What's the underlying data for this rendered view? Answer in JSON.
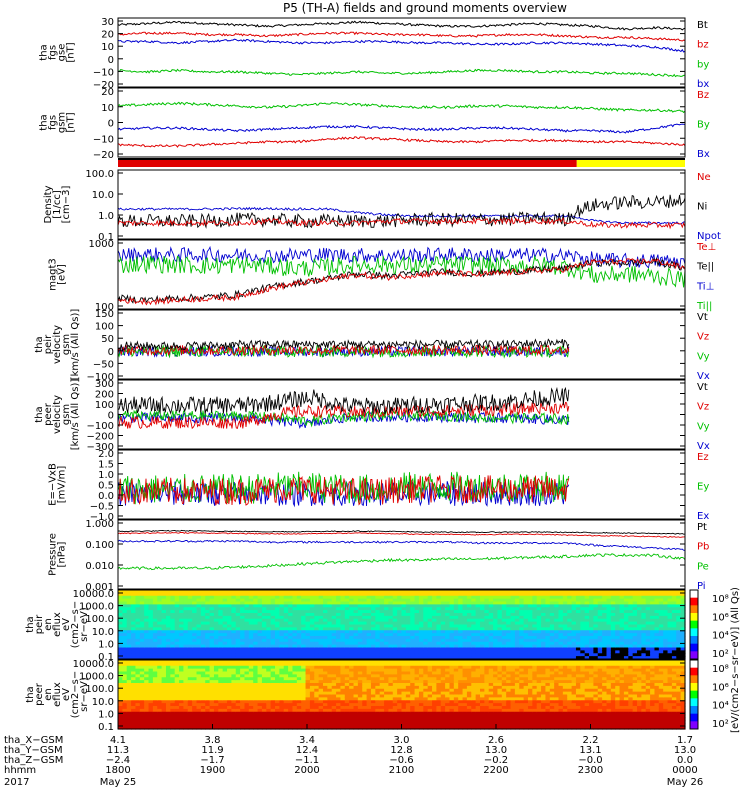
{
  "title": "P5 (TH-A) fields and ground moments overview",
  "chart_data": [
    {
      "type": "line",
      "ylabel": [
        "tha",
        "fgs",
        "gse",
        "[nT]"
      ],
      "yticks": [
        "30",
        "20",
        "10",
        "0",
        "−10",
        "−20"
      ],
      "ylim": [
        -20,
        30
      ],
      "legend": [
        {
          "name": "Bt",
          "color": "#000000"
        },
        {
          "name": "bz",
          "color": "#e00000"
        },
        {
          "name": "by",
          "color": "#00c000"
        },
        {
          "name": "bx",
          "color": "#0000d0"
        }
      ],
      "series": [
        {
          "name": "Bt",
          "color": "#000000",
          "level": [
            25,
            26,
            27,
            26,
            25,
            24,
            25,
            26,
            27,
            26,
            25,
            24,
            24,
            25,
            26,
            25,
            24,
            22,
            23,
            22
          ],
          "noise": 0.8
        },
        {
          "name": "bz",
          "color": "#e00000",
          "level": [
            18,
            19,
            19,
            18,
            18,
            17,
            18,
            19,
            19,
            18,
            18,
            17,
            17,
            18,
            18,
            17,
            16,
            16,
            15,
            14
          ],
          "noise": 0.8
        },
        {
          "name": "bx",
          "color": "#0000d0",
          "level": [
            13,
            13,
            12,
            13,
            14,
            13,
            12,
            12,
            13,
            13,
            12,
            12,
            11,
            11,
            12,
            12,
            11,
            10,
            9,
            6
          ],
          "noise": 0.8
        },
        {
          "name": "by",
          "color": "#00c000",
          "level": [
            -8,
            -9,
            -8,
            -9,
            -9,
            -10,
            -11,
            -10,
            -9,
            -10,
            -10,
            -9,
            -8,
            -8,
            -9,
            -9,
            -10,
            -10,
            -11,
            -12
          ],
          "noise": 0.8
        }
      ]
    },
    {
      "type": "line",
      "ylabel": [
        "tha",
        "fgs",
        "gsm",
        "[nT]"
      ],
      "yticks": [
        "20",
        "10",
        "0",
        "−10",
        "−20"
      ],
      "ylim": [
        -25,
        25
      ],
      "legend": [
        {
          "name": "Bz",
          "color": "#e00000"
        },
        {
          "name": "By",
          "color": "#00c000"
        },
        {
          "name": "Bx",
          "color": "#0000d0"
        }
      ],
      "series": [
        {
          "name": "By",
          "color": "#00c000",
          "level": [
            12,
            13,
            14,
            13,
            12,
            11,
            12,
            14,
            13,
            12,
            11,
            11,
            12,
            12,
            11,
            11,
            10,
            9,
            9,
            8
          ],
          "noise": 0.9
        },
        {
          "name": "Bx",
          "color": "#0000d0",
          "level": [
            -5,
            -4,
            -4,
            -5,
            -6,
            -5,
            -4,
            -3,
            -3,
            -4,
            -5,
            -5,
            -4,
            -4,
            -5,
            -6,
            -6,
            -7,
            -4,
            -1
          ],
          "noise": 0.8
        },
        {
          "name": "Bz",
          "color": "#e00000",
          "level": [
            -16,
            -17,
            -17,
            -16,
            -15,
            -14,
            -14,
            -12,
            -11,
            -12,
            -13,
            -14,
            -14,
            -13,
            -13,
            -13,
            -14,
            -14,
            -15,
            -16
          ],
          "noise": 0.8
        }
      ]
    },
    {
      "type": "line",
      "ylabel": [
        "Density",
        "[1/cc]",
        "[cm−3]"
      ],
      "yticks": [
        "100.0",
        "10.0",
        "1.0",
        "0.1"
      ],
      "log": true,
      "ylim": [
        0.1,
        100
      ],
      "legend": [
        {
          "name": "Ne",
          "color": "#e00000"
        },
        {
          "name": "Ni",
          "color": "#000000"
        },
        {
          "name": "Npot",
          "color": "#0000d0"
        }
      ],
      "series": [
        {
          "name": "Npot",
          "color": "#0000d0",
          "level": [
            2,
            2,
            2,
            2,
            2.1,
            2.1,
            2,
            2,
            1.4,
            1.1,
            1,
            1,
            1,
            1,
            1,
            1,
            0.6,
            0.5,
            0.5,
            0.5
          ],
          "noise": 0.05
        },
        {
          "name": "Ni",
          "color": "#000000",
          "level": [
            0.6,
            0.6,
            0.6,
            0.6,
            0.7,
            0.7,
            0.6,
            0.6,
            0.6,
            0.6,
            0.7,
            0.7,
            0.7,
            0.7,
            0.8,
            0.7,
            3,
            4,
            4,
            5
          ],
          "noise": 0.3
        },
        {
          "name": "Ne",
          "color": "#e00000",
          "level": [
            0.5,
            0.5,
            0.5,
            0.5,
            0.5,
            0.6,
            0.5,
            0.5,
            0.5,
            0.6,
            0.6,
            0.6,
            0.6,
            0.6,
            0.6,
            0.6,
            0.4,
            0.4,
            0.4,
            0.4
          ],
          "noise": 0.12
        }
      ]
    },
    {
      "type": "line",
      "ylabel": [
        "magt3",
        "[eV]"
      ],
      "yticks": [
        "1000",
        "100"
      ],
      "log": true,
      "ylim": [
        40,
        8000
      ],
      "legend": [
        {
          "name": "Te⊥",
          "color": "#e00000"
        },
        {
          "name": "Te||",
          "color": "#000000"
        },
        {
          "name": "Ti⊥",
          "color": "#0000d0"
        },
        {
          "name": "Ti||",
          "color": "#00c000"
        }
      ],
      "series": [
        {
          "name": "Ti⊥",
          "color": "#0000d0",
          "level": [
            2500,
            2600,
            2500,
            2600,
            2500,
            2400,
            2500,
            2600,
            2500,
            2400,
            2500,
            2600,
            2500,
            2500,
            2500,
            2400,
            1800,
            1600,
            1600,
            1500
          ],
          "noise": 0.25
        },
        {
          "name": "Ti||",
          "color": "#00c000",
          "level": [
            1200,
            1300,
            1200,
            1100,
            1200,
            1100,
            900,
            1000,
            1200,
            1200,
            1100,
            1200,
            1200,
            1100,
            1200,
            1000,
            500,
            600,
            500,
            400
          ],
          "noise": 0.3
        },
        {
          "name": "Te||",
          "color": "#000000",
          "level": [
            90,
            80,
            90,
            100,
            120,
            200,
            300,
            400,
            600,
            500,
            600,
            700,
            600,
            700,
            800,
            900,
            1400,
            1400,
            1500,
            900
          ],
          "noise": 0.12
        },
        {
          "name": "Te⊥",
          "color": "#e00000",
          "level": [
            80,
            70,
            80,
            90,
            100,
            180,
            280,
            380,
            550,
            450,
            550,
            650,
            550,
            650,
            750,
            850,
            1500,
            1500,
            1600,
            900
          ],
          "noise": 0.1
        }
      ]
    },
    {
      "type": "line",
      "ylabel": [
        "tha",
        "peir",
        "velocity",
        "gsm",
        "[km/s (All Qs)]"
      ],
      "yticks": [
        "150",
        "100",
        "50",
        "0",
        "−50",
        "−100"
      ],
      "ylim": [
        -100,
        150
      ],
      "legend": [
        {
          "name": "Vt",
          "color": "#000000"
        },
        {
          "name": "Vz",
          "color": "#e00000"
        },
        {
          "name": "Vy",
          "color": "#00c000"
        },
        {
          "name": "Vx",
          "color": "#0000d0"
        }
      ],
      "series": [
        {
          "name": "Vx",
          "color": "#0000d0",
          "level": [
            0,
            0,
            0,
            0,
            0,
            0,
            0,
            0,
            0,
            0,
            0,
            0,
            0,
            0,
            0
          ],
          "noise": 6
        },
        {
          "name": "Vy",
          "color": "#00c000",
          "level": [
            0,
            0,
            0,
            0,
            0,
            0,
            0,
            0,
            0,
            0,
            0,
            0,
            0,
            0,
            0
          ],
          "noise": 7
        },
        {
          "name": "Vz",
          "color": "#e00000",
          "level": [
            5,
            5,
            5,
            5,
            5,
            5,
            5,
            5,
            5,
            5,
            5,
            5,
            5,
            5,
            5
          ],
          "noise": 6
        },
        {
          "name": "Vt",
          "color": "#000000",
          "level": [
            20,
            20,
            20,
            22,
            25,
            25,
            25,
            25,
            25,
            25,
            25,
            25,
            25,
            30,
            30
          ],
          "noise": 5
        }
      ]
    },
    {
      "type": "line",
      "ylabel": [
        "tha",
        "peer",
        "velocity",
        "gsm",
        "[km/s (All Qs)]"
      ],
      "yticks": [
        "300",
        "200",
        "100",
        "0",
        "−100",
        "−200",
        "−300"
      ],
      "ylim": [
        -300,
        300
      ],
      "legend": [
        {
          "name": "Vt",
          "color": "#000000"
        },
        {
          "name": "Vz",
          "color": "#e00000"
        },
        {
          "name": "Vy",
          "color": "#00c000"
        },
        {
          "name": "Vx",
          "color": "#0000d0"
        }
      ],
      "series": [
        {
          "name": "Vx",
          "color": "#0000d0",
          "level": [
            -30,
            -30,
            -30,
            -30,
            -30,
            -60,
            -80,
            -30,
            -20,
            -20,
            -20,
            -30,
            -30,
            -40,
            -50
          ],
          "noise": 15
        },
        {
          "name": "Vy",
          "color": "#00c000",
          "level": [
            -10,
            -10,
            -10,
            -10,
            -10,
            -30,
            -60,
            -20,
            -10,
            -10,
            -10,
            -20,
            -30,
            -30,
            -40
          ],
          "noise": 15
        },
        {
          "name": "Vz",
          "color": "#e00000",
          "level": [
            -70,
            -70,
            -70,
            -70,
            -70,
            10,
            30,
            20,
            20,
            30,
            30,
            40,
            40,
            60,
            60
          ],
          "noise": 18
        },
        {
          "name": "Vt",
          "color": "#000000",
          "level": [
            80,
            80,
            80,
            80,
            80,
            110,
            150,
            80,
            70,
            80,
            90,
            100,
            110,
            140,
            160
          ],
          "noise": 25
        }
      ]
    },
    {
      "type": "line",
      "ylabel": [
        "E=−VxB",
        "[mV/m]"
      ],
      "yticks": [
        "2.0",
        "1.5",
        "1.0",
        "0.5",
        "0.0",
        "−0.5",
        "−1.0"
      ],
      "ylim": [
        -1,
        2
      ],
      "legend": [
        {
          "name": "Ez",
          "color": "#e00000"
        },
        {
          "name": "Ey",
          "color": "#00c000"
        },
        {
          "name": "Ex",
          "color": "#0000d0"
        }
      ],
      "series": [
        {
          "name": "Ex",
          "color": "#0000d0",
          "level": [
            0.1,
            0.1,
            0.1,
            0.1,
            0.1,
            0.1,
            0.1,
            0.1,
            0.1,
            0.1,
            0.1,
            0.1,
            0.1,
            0.1,
            0.1
          ],
          "noise": 0.18
        },
        {
          "name": "Ey",
          "color": "#00c000",
          "level": [
            0.3,
            0.3,
            0.3,
            0.3,
            0.3,
            0.4,
            0.4,
            0.3,
            0.3,
            0.4,
            0.4,
            0.4,
            0.4,
            0.4,
            0.4
          ],
          "noise": 0.22
        },
        {
          "name": "Ez",
          "color": "#e00000",
          "level": [
            0.2,
            0.2,
            0.2,
            0.2,
            0.2,
            0.3,
            0.3,
            0.2,
            0.2,
            0.3,
            0.3,
            0.3,
            0.3,
            0.3,
            0.3
          ],
          "noise": 0.2
        }
      ]
    },
    {
      "type": "line",
      "ylabel": [
        "Pressure",
        "[nPa]"
      ],
      "yticks": [
        "1.000",
        "0.100",
        "0.010",
        "0.001"
      ],
      "log": true,
      "ylim": [
        0.001,
        1
      ],
      "legend": [
        {
          "name": "Pt",
          "color": "#000000"
        },
        {
          "name": "Pb",
          "color": "#e00000"
        },
        {
          "name": "Pe",
          "color": "#00c000"
        },
        {
          "name": "Pi",
          "color": "#0000d0"
        }
      ],
      "series": [
        {
          "name": "Pt",
          "color": "#000000",
          "level": [
            0.32,
            0.33,
            0.34,
            0.33,
            0.32,
            0.31,
            0.31,
            0.32,
            0.33,
            0.32,
            0.3,
            0.3,
            0.29,
            0.3,
            0.3,
            0.29,
            0.28,
            0.27,
            0.26,
            0.25
          ],
          "noise": 0.02
        },
        {
          "name": "Pb",
          "color": "#e00000",
          "level": [
            0.26,
            0.27,
            0.28,
            0.27,
            0.26,
            0.25,
            0.25,
            0.26,
            0.27,
            0.26,
            0.24,
            0.24,
            0.23,
            0.24,
            0.24,
            0.22,
            0.21,
            0.2,
            0.19,
            0.18
          ],
          "noise": 0.02
        },
        {
          "name": "Pi",
          "color": "#0000d0",
          "level": [
            0.12,
            0.12,
            0.12,
            0.12,
            0.12,
            0.11,
            0.11,
            0.11,
            0.11,
            0.11,
            0.11,
            0.11,
            0.1,
            0.1,
            0.1,
            0.1,
            0.08,
            0.07,
            0.06,
            0.05
          ],
          "noise": 0.04
        },
        {
          "name": "Pe",
          "color": "#00c000",
          "level": [
            0.008,
            0.008,
            0.008,
            0.008,
            0.009,
            0.01,
            0.012,
            0.014,
            0.016,
            0.018,
            0.018,
            0.02,
            0.02,
            0.022,
            0.024,
            0.026,
            0.03,
            0.03,
            0.029,
            0.02
          ],
          "noise": 0.06
        }
      ]
    },
    {
      "type": "heatmap",
      "ylabel": [
        "tha",
        "peir",
        "en",
        "eflux",
        "eV",
        "(cm2−s−",
        "sr−eV)"
      ],
      "yticks": [
        "10000.0",
        "1000.0",
        "100.0",
        "10.0",
        "1.0",
        "0.1"
      ]
    },
    {
      "type": "heatmap",
      "ylabel": [
        "tha",
        "peer",
        "en",
        "eflux",
        "eV",
        "(cm2−s−",
        "sr−eV)"
      ],
      "yticks": [
        "10000.0",
        "1000.0",
        "100.0",
        "10.0",
        "1.0",
        "0.1"
      ]
    }
  ],
  "colorbar": {
    "label": "[eV/(cm2−s−sr−eV)] (All Qs)",
    "ticks_top": [
      "10⁸",
      "10⁶",
      "10⁴",
      "10²"
    ],
    "ticks_bottom": [
      "10⁸",
      "10⁶",
      "10⁴",
      "10²"
    ]
  },
  "bar_panel": {
    "colors": [
      "#e00000",
      "#ffff00"
    ]
  },
  "x_axis": {
    "rows": [
      {
        "label": "tha_X−GSM",
        "values": [
          "4.1",
          "3.8",
          "3.4",
          "3.0",
          "2.6",
          "2.2",
          "1.7"
        ]
      },
      {
        "label": "tha_Y−GSM",
        "values": [
          "11.3",
          "11.9",
          "12.4",
          "12.8",
          "13.0",
          "13.1",
          "13.0"
        ]
      },
      {
        "label": "tha_Z−GSM",
        "values": [
          "−2.4",
          "−1.7",
          "−1.1",
          "−0.6",
          "−0.2",
          "−0.0",
          "0.0"
        ]
      },
      {
        "label": "hhmm",
        "values": [
          "1800",
          "1900",
          "2000",
          "2100",
          "2200",
          "2300",
          "0000"
        ]
      }
    ],
    "year": "2017",
    "date_start": "May 25",
    "date_end": "May 26"
  }
}
